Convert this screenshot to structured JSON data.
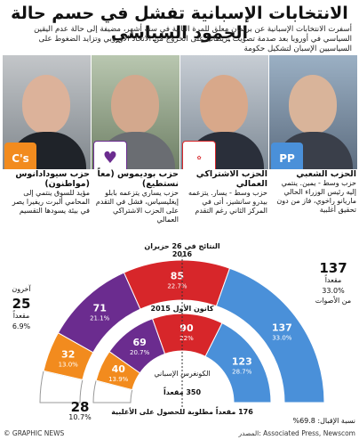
{
  "header": {
    "title": "الانتخابات الإسبانية تفشل في حسم حالة الجمود السياسي",
    "intro": "أسفرت الانتخابات الإسبانية عن برلمان معلق للمرة الثانية في ستة أشهر، مضيفة إلى حالة عدم اليقين السياسي في أوروبا بعد صدمة تصويت بريطانيا على الخروج من الاتحاد الأوروبي وتزايد الضغوط على السياسيين الإسبان لتشكيل حكومة"
  },
  "parties": [
    {
      "name": "الحزب الشعبي",
      "desc": "حزب وسط - يمين. ينتمي إليه رئيس الوزراء الحالي ماريانو راخوي، فاز من دون تحقيق أغلبية",
      "color": "#4a90d9",
      "logo": "PP"
    },
    {
      "name": "الحزب الاشتراكي العمالي",
      "desc": "حزب وسط - يسار. يتزعمه بيدرو سانشيز، أتى في المركز الثاني رغم التقدم",
      "color": "#d7262a",
      "logo": "PSOE"
    },
    {
      "name": "حزب بوديموس (معاً نستطيع)",
      "desc": "حزب يساري يتزعمه بابلو إيغليسياس، فشل في التقدم على الحزب الاشتراكي العمالي",
      "color": "#6b2c8f",
      "logo": "Podemos"
    },
    {
      "name": "حزب سيودادانوس (مواطنون)",
      "desc": "مؤيد للسوق ينتمي إلى المحامي ألبرت ريفيرا يصر في بيئة يسودها التقسيم",
      "color": "#f28b1e",
      "logo": "C's"
    }
  ],
  "chart_data": {
    "type": "semi-donut",
    "outer_title": "النتائج في 26 حزيران 2016",
    "inner_title": "كانون الأول 2015",
    "center_label": "الكونغرس الإسباني",
    "center_total": "350 مقعداً",
    "majority": "176 مقعداً مطلوبة للحصول على الأغلبية",
    "turnout": "نسبة الإقبال: 69.8%",
    "outer": [
      {
        "party": "Others",
        "seats": 25,
        "pct": "6.9%",
        "color": "#ffffff"
      },
      {
        "party": "Cs",
        "seats": 32,
        "pct": "13.0%",
        "color": "#f28b1e"
      },
      {
        "party": "Podemos",
        "seats": 71,
        "pct": "21.1%",
        "color": "#6b2c8f"
      },
      {
        "party": "PSOE",
        "seats": 85,
        "pct": "22.7%",
        "color": "#d7262a"
      },
      {
        "party": "PP",
        "seats": 137,
        "pct": "33.0%",
        "color": "#4a90d9"
      }
    ],
    "inner": [
      {
        "party": "Others",
        "seats": 28,
        "pct": "10.7%",
        "color": "#ffffff"
      },
      {
        "party": "Cs",
        "seats": 40,
        "pct": "13.9%",
        "color": "#f28b1e"
      },
      {
        "party": "Podemos",
        "seats": 69,
        "pct": "20.7%",
        "color": "#6b2c8f"
      },
      {
        "party": "PSOE",
        "seats": 90,
        "pct": "22%",
        "color": "#d7262a"
      },
      {
        "party": "PP",
        "seats": 123,
        "pct": "28.7%",
        "color": "#4a90d9"
      }
    ],
    "labels": {
      "others": "آخرون",
      "seats_word": "مقعداً",
      "of_votes": "من الأصوات"
    }
  },
  "footer": {
    "credit": "© GRAPHIC NEWS",
    "source": "المصدر: Associated Press, Newscom"
  }
}
